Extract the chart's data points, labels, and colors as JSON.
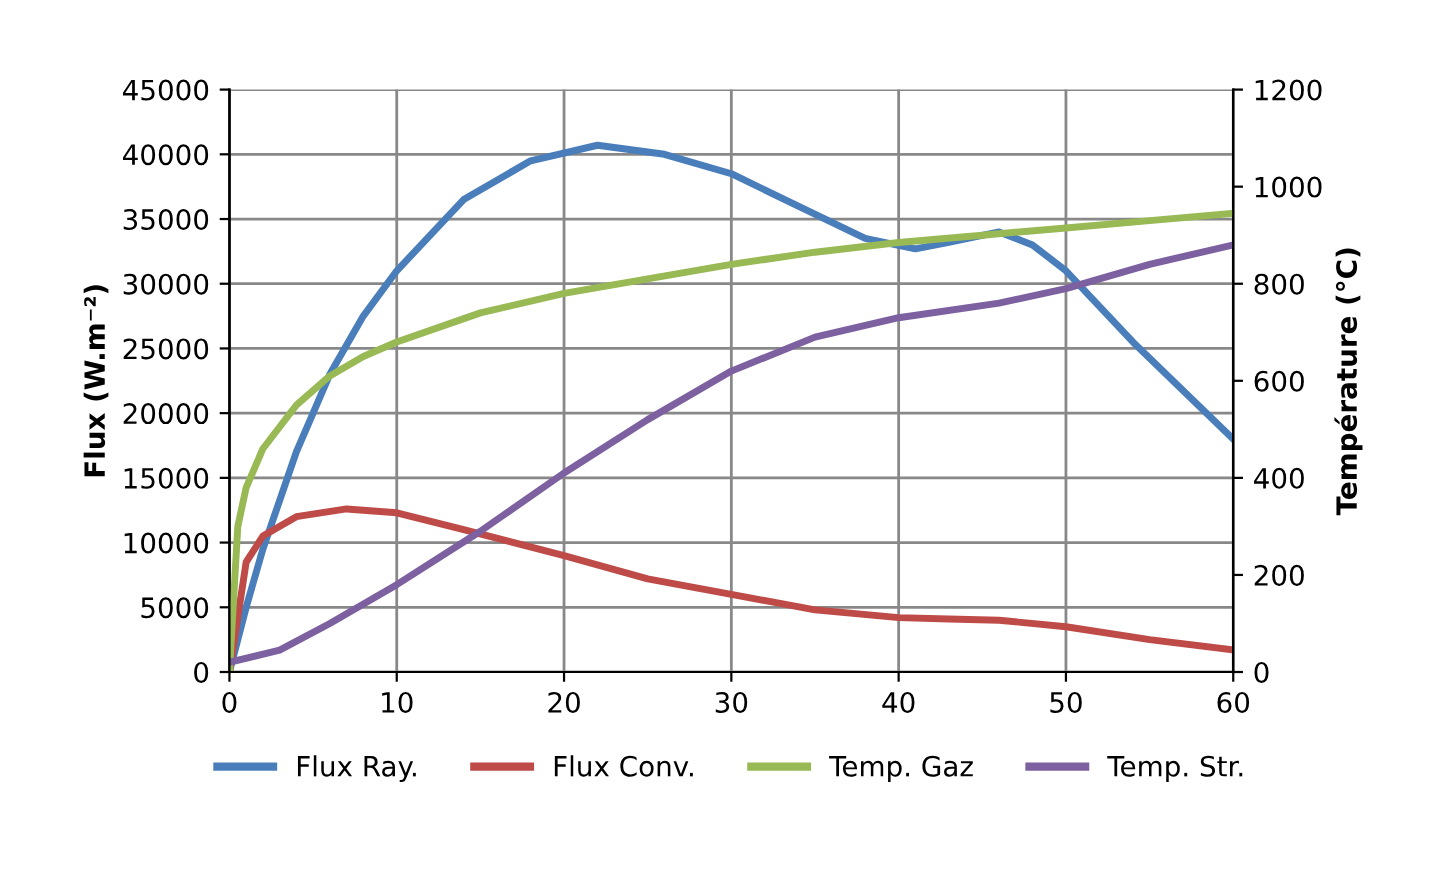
{
  "chart_data": {
    "type": "line",
    "ylabel": "Flux (W.m⁻²)",
    "y2label": "Température (°C)",
    "xlim": [
      0,
      60
    ],
    "xticks": [
      0,
      10,
      20,
      30,
      40,
      50,
      60
    ],
    "ylim": [
      0,
      45000
    ],
    "yticks": [
      0,
      5000,
      10000,
      15000,
      20000,
      25000,
      30000,
      35000,
      40000,
      45000
    ],
    "y2lim": [
      0,
      1200
    ],
    "y2ticks": [
      0,
      200,
      400,
      600,
      800,
      1000,
      1200
    ],
    "grid": true,
    "legend": "bottom",
    "marker": "none",
    "line_style": "solid",
    "series": [
      {
        "name": "Flux Ray.",
        "color": "#4a7ebb",
        "x": [
          0,
          1,
          2,
          4,
          6,
          8,
          10,
          14,
          18,
          22,
          26,
          30,
          34,
          38,
          41,
          43,
          46,
          48,
          50,
          54,
          58,
          60
        ],
        "values": [
          0,
          5000,
          9500,
          17000,
          23000,
          27500,
          31000,
          36500,
          39500,
          40700,
          40000,
          38500,
          36000,
          33500,
          32700,
          33200,
          34000,
          33000,
          31000,
          25500,
          20500,
          18000
        ]
      },
      {
        "name": "Flux Conv.",
        "color": "#be4b48",
        "x": [
          0,
          1,
          2,
          4,
          7,
          10,
          14,
          20,
          25,
          30,
          35,
          40,
          43,
          46,
          50,
          55,
          60
        ],
        "values": [
          0,
          8500,
          10500,
          12000,
          12600,
          12300,
          11000,
          9000,
          7200,
          6000,
          4800,
          4200,
          4100,
          4000,
          3500,
          2500,
          1700
        ]
      },
      {
        "name": "Temp. Gaz",
        "color": "#98b954",
        "axis": "y2",
        "x": [
          0,
          0.5,
          1,
          2,
          4,
          6,
          8,
          10,
          15,
          20,
          25,
          30,
          35,
          40,
          45,
          50,
          55,
          60
        ],
        "values": [
          0,
          300,
          380,
          460,
          550,
          610,
          650,
          680,
          740,
          780,
          810,
          840,
          865,
          885,
          900,
          915,
          930,
          945
        ]
      },
      {
        "name": "Temp. Str.",
        "color": "#7d60a0",
        "axis": "y2",
        "x": [
          0,
          3,
          6,
          10,
          15,
          20,
          25,
          30,
          35,
          40,
          46,
          50,
          55,
          60
        ],
        "values": [
          20,
          45,
          100,
          180,
          290,
          410,
          520,
          620,
          690,
          730,
          760,
          790,
          840,
          880
        ]
      }
    ]
  }
}
